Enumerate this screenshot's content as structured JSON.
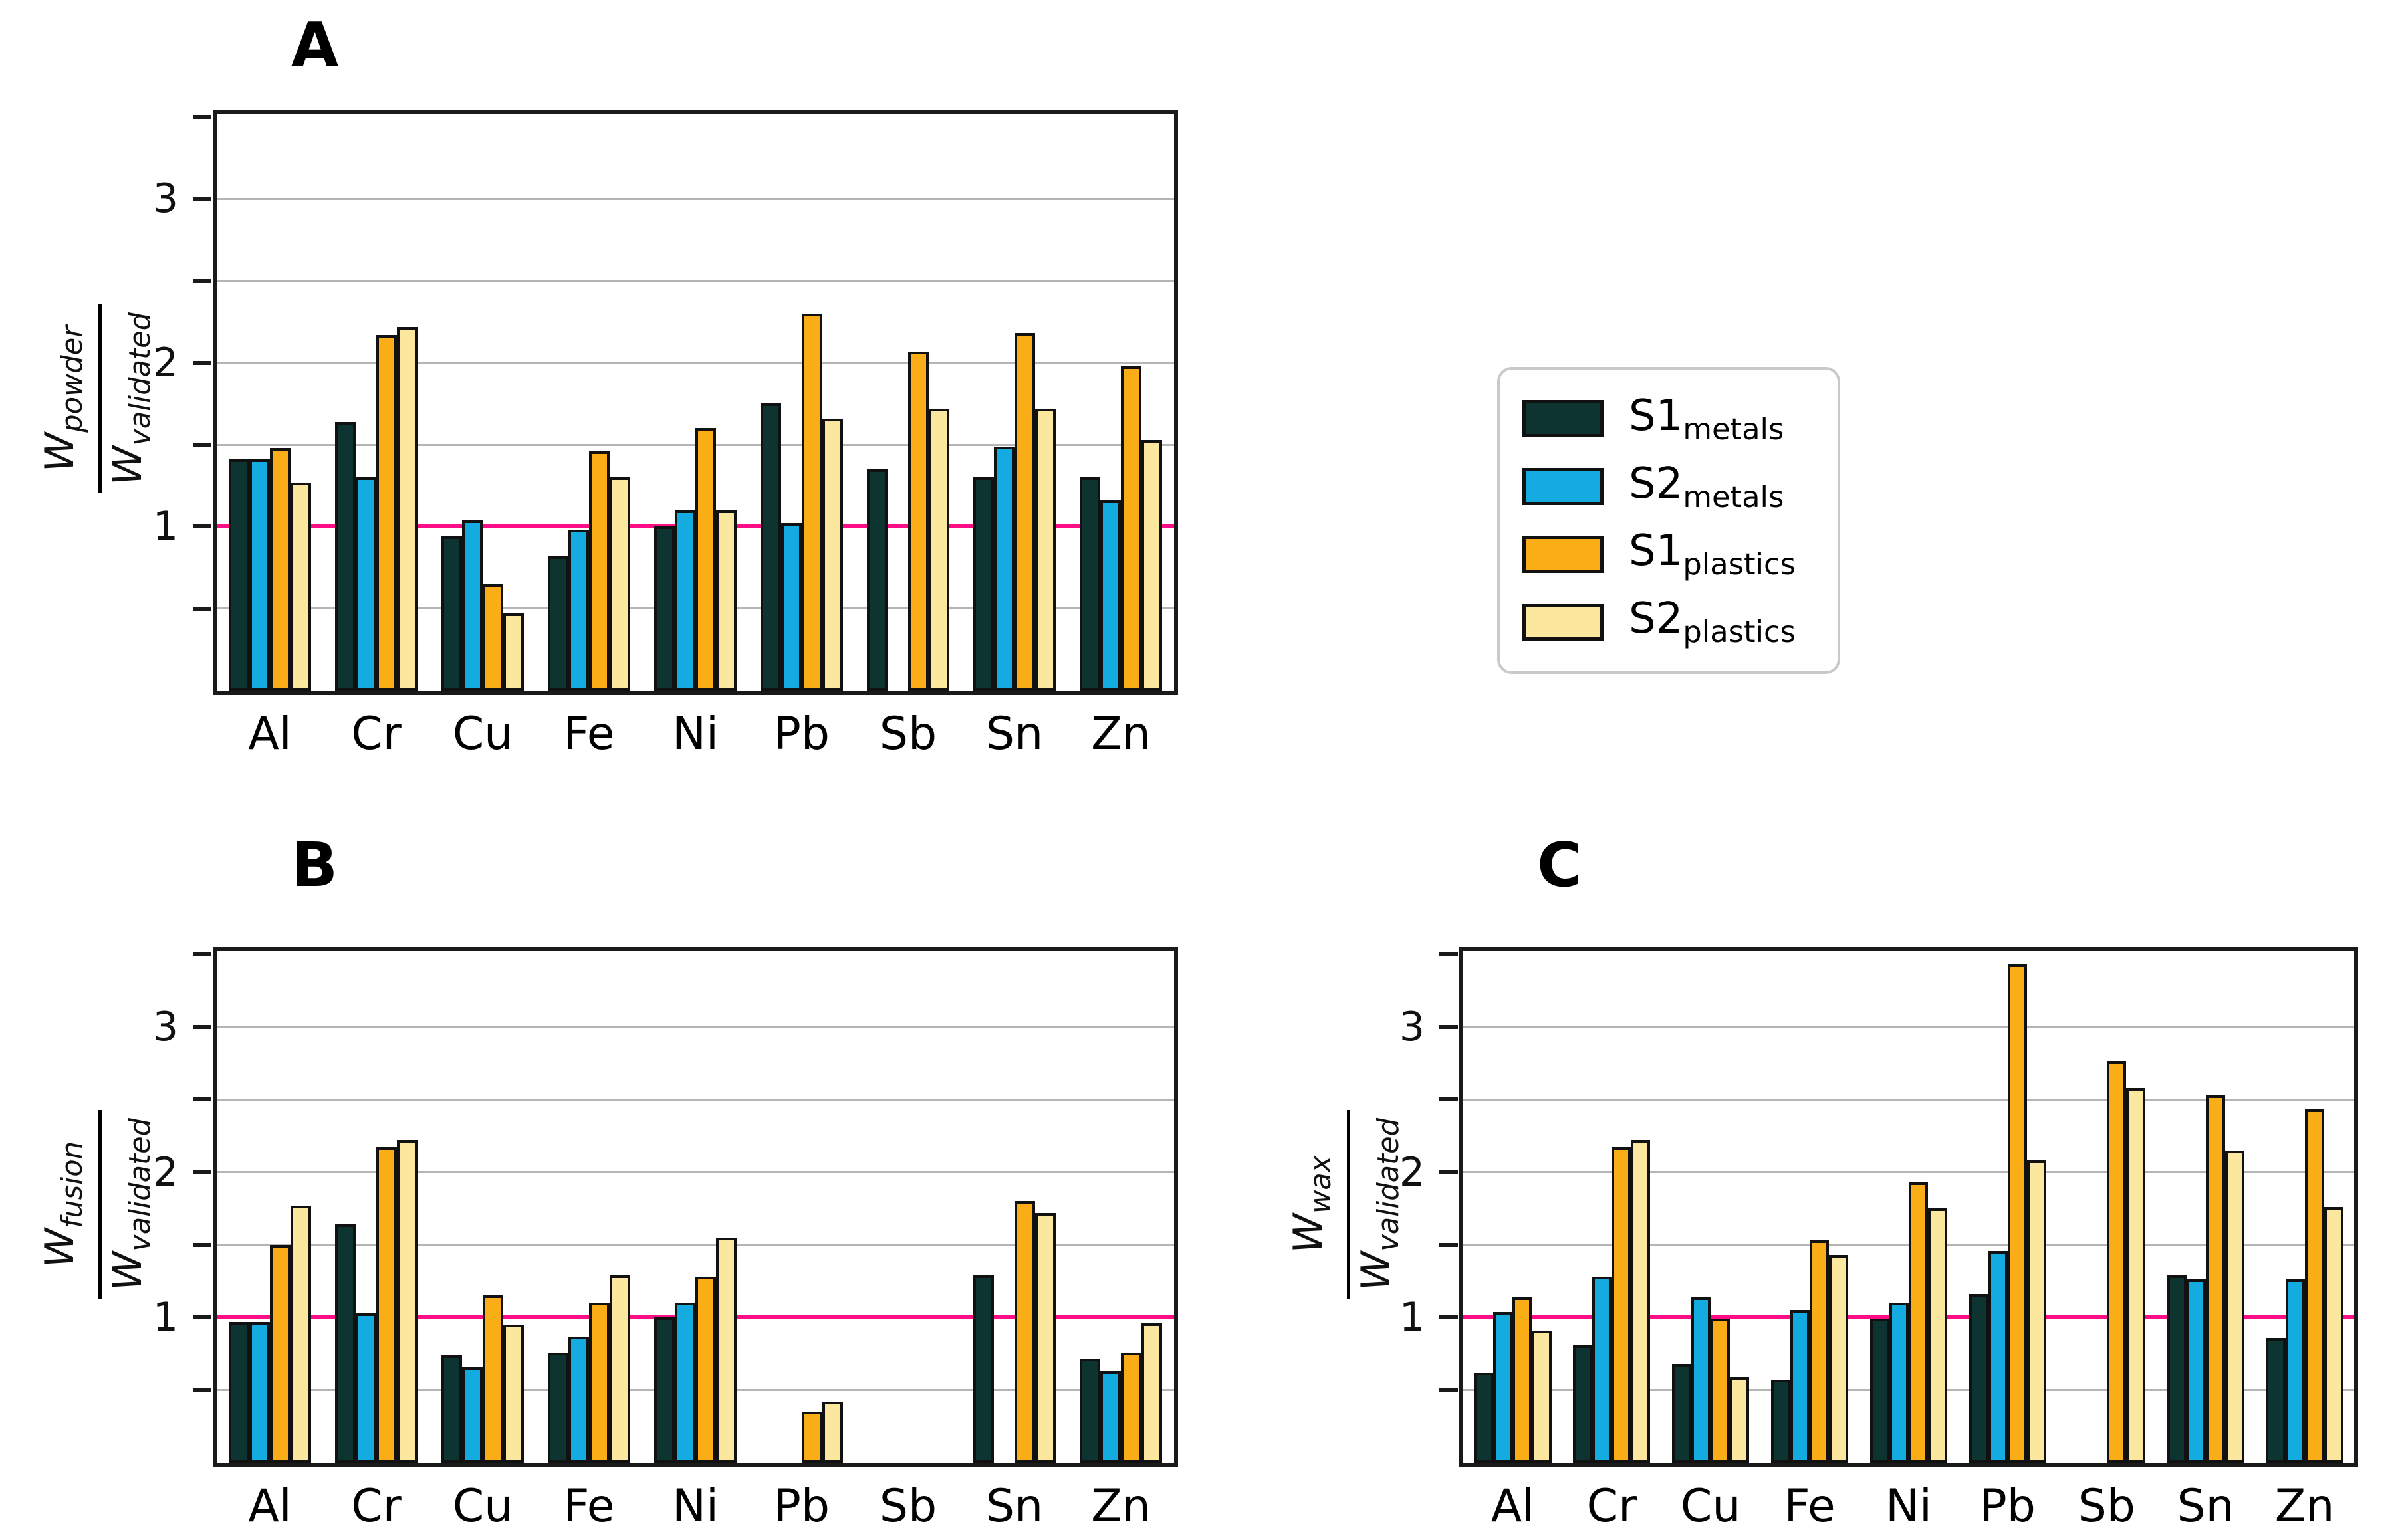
{
  "legend": {
    "items": [
      {
        "main": "S1",
        "sub": "metals",
        "color": "#0e3432"
      },
      {
        "main": "S2",
        "sub": "metals",
        "color": "#14abe0"
      },
      {
        "main": "S1",
        "sub": "plastics",
        "color": "#fbad18"
      },
      {
        "main": "S2",
        "sub": "plastics",
        "color": "#fce79e"
      }
    ]
  },
  "style": {
    "reference_color": "#ff0d86",
    "gridline_color": "#b5b5b5",
    "bar_border_color": "#111111"
  },
  "chart_data": [
    {
      "type": "bar",
      "panel": "A",
      "ylabel": {
        "num_main": "W",
        "num_sub": "powder",
        "den_main": "W",
        "den_sub": "validated"
      },
      "categories": [
        "Al",
        "Cr",
        "Cu",
        "Fe",
        "Ni",
        "Pb",
        "Sb",
        "Sn",
        "Zn"
      ],
      "series": [
        {
          "name": "S1_metals",
          "color": "#0e3432",
          "values": [
            1.41,
            1.64,
            0.94,
            0.82,
            1.0,
            1.75,
            1.35,
            1.3,
            1.3
          ]
        },
        {
          "name": "S2_metals",
          "color": "#14abe0",
          "values": [
            1.41,
            1.3,
            1.04,
            0.98,
            1.1,
            1.02,
            0,
            1.49,
            1.16
          ]
        },
        {
          "name": "S1_plastics",
          "color": "#fbad18",
          "values": [
            1.48,
            2.17,
            0.65,
            1.46,
            1.6,
            2.3,
            2.07,
            2.18,
            1.98
          ]
        },
        {
          "name": "S2_plastics",
          "color": "#fce79e",
          "values": [
            1.27,
            2.22,
            0.47,
            1.3,
            1.1,
            1.66,
            1.72,
            1.72,
            1.53
          ]
        }
      ],
      "ylim": [
        0,
        3.52
      ],
      "yticks_labeled": [
        1,
        2,
        3
      ],
      "yticks_minor_step": 0.5,
      "grid": true,
      "reference_line": 1.0
    },
    {
      "type": "bar",
      "panel": "B",
      "ylabel": {
        "num_main": "W",
        "num_sub": "fusion",
        "den_main": "W",
        "den_sub": "validated"
      },
      "categories": [
        "Al",
        "Cr",
        "Cu",
        "Fe",
        "Ni",
        "Pb",
        "Sb",
        "Sn",
        "Zn"
      ],
      "series": [
        {
          "name": "S1_metals",
          "color": "#0e3432",
          "values": [
            0.97,
            1.64,
            0.74,
            0.76,
            1.0,
            0,
            0,
            1.29,
            0.72
          ]
        },
        {
          "name": "S2_metals",
          "color": "#14abe0",
          "values": [
            0.97,
            1.03,
            0.66,
            0.87,
            1.1,
            0,
            0,
            0,
            0.63
          ]
        },
        {
          "name": "S1_plastics",
          "color": "#fbad18",
          "values": [
            1.5,
            2.17,
            1.15,
            1.1,
            1.28,
            0.35,
            0,
            1.8,
            0.76
          ]
        },
        {
          "name": "S2_plastics",
          "color": "#fce79e",
          "values": [
            1.77,
            2.22,
            0.95,
            1.29,
            1.55,
            0.42,
            0,
            1.72,
            0.96
          ]
        }
      ],
      "ylim": [
        0,
        3.52
      ],
      "yticks_labeled": [
        1,
        2,
        3
      ],
      "yticks_minor_step": 0.5,
      "grid": true,
      "reference_line": 1.0
    },
    {
      "type": "bar",
      "panel": "C",
      "ylabel": {
        "num_main": "W",
        "num_sub": "wax",
        "den_main": "W",
        "den_sub": "validated"
      },
      "categories": [
        "Al",
        "Cr",
        "Cu",
        "Fe",
        "Ni",
        "Pb",
        "Sb",
        "Sn",
        "Zn"
      ],
      "series": [
        {
          "name": "S1_metals",
          "color": "#0e3432",
          "values": [
            0.62,
            0.81,
            0.68,
            0.57,
            0.99,
            1.16,
            0,
            1.29,
            0.86
          ]
        },
        {
          "name": "S2_metals",
          "color": "#14abe0",
          "values": [
            1.04,
            1.28,
            1.14,
            1.05,
            1.1,
            1.46,
            0,
            1.26,
            1.26
          ]
        },
        {
          "name": "S1_plastics",
          "color": "#fbad18",
          "values": [
            1.14,
            2.17,
            0.99,
            1.53,
            1.93,
            3.43,
            2.76,
            2.53,
            2.43
          ]
        },
        {
          "name": "S2_plastics",
          "color": "#fce79e",
          "values": [
            0.91,
            2.22,
            0.59,
            1.43,
            1.75,
            2.08,
            2.58,
            2.15,
            1.76
          ]
        }
      ],
      "ylim": [
        0,
        3.52
      ],
      "yticks_labeled": [
        1,
        2,
        3
      ],
      "yticks_minor_step": 0.5,
      "grid": true,
      "reference_line": 1.0
    }
  ]
}
